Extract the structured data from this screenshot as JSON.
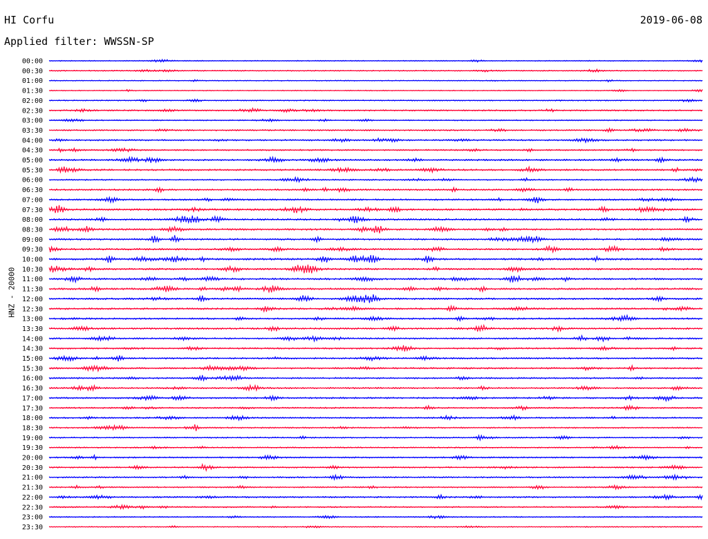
{
  "header": {
    "station": "HI Corfu",
    "date": "2019-06-08",
    "filter": "Applied filter: WWSSN-SP"
  },
  "chart_data": {
    "type": "line",
    "title": "HI Corfu",
    "subtitle": "Applied filter: WWSSN-SP",
    "ylabel": "HNZ - 20000",
    "xlabel": "",
    "colors": [
      "#0000ff",
      "#ff0033"
    ],
    "row_labels": [
      "00:00",
      "00:30",
      "01:00",
      "01:30",
      "02:00",
      "02:30",
      "03:00",
      "03:30",
      "04:00",
      "04:30",
      "05:00",
      "05:30",
      "06:00",
      "06:30",
      "07:00",
      "07:30",
      "08:00",
      "08:30",
      "09:00",
      "09:30",
      "10:00",
      "10:30",
      "11:00",
      "11:30",
      "12:00",
      "12:30",
      "13:00",
      "13:30",
      "14:00",
      "14:30",
      "15:00",
      "15:30",
      "16:00",
      "16:30",
      "17:00",
      "17:30",
      "18:00",
      "18:30",
      "19:00",
      "19:30",
      "20:00",
      "20:30",
      "21:00",
      "21:30",
      "22:00",
      "22:30",
      "23:00",
      "23:30"
    ],
    "activity": [
      0.15,
      0.2,
      0.1,
      0.1,
      0.2,
      0.45,
      0.25,
      0.45,
      0.55,
      0.45,
      0.6,
      0.65,
      0.4,
      0.6,
      0.6,
      0.8,
      0.7,
      0.75,
      0.7,
      0.7,
      0.85,
      0.75,
      0.75,
      0.75,
      0.7,
      0.65,
      0.65,
      0.7,
      0.6,
      0.55,
      0.55,
      0.65,
      0.55,
      0.5,
      0.55,
      0.45,
      0.45,
      0.45,
      0.35,
      0.3,
      0.45,
      0.4,
      0.45,
      0.4,
      0.5,
      0.35,
      0.25,
      0.15
    ],
    "grid": false,
    "legend": "none"
  }
}
